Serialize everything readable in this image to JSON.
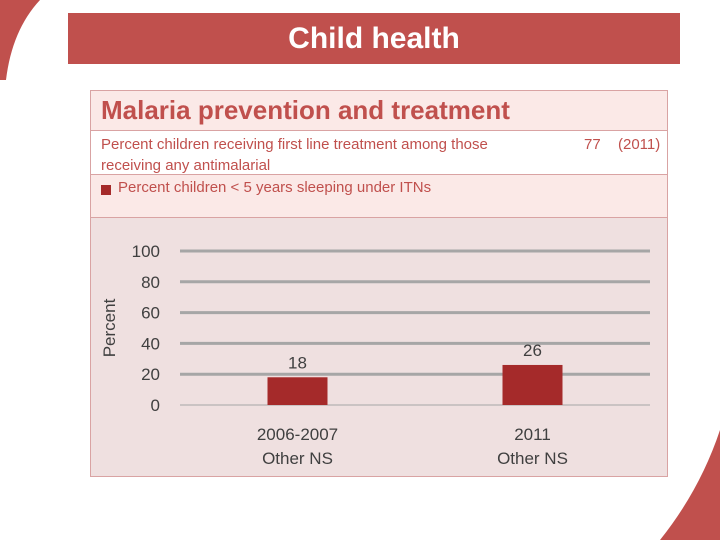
{
  "slide": {
    "title": "Child health"
  },
  "panel": {
    "title": "Malaria prevention and treatment",
    "info_text": "Percent children receiving first line treatment among those receiving any antimalarial",
    "info_value": "77",
    "info_year": "(2011)",
    "legend": "Percent children < 5 years sleeping under ITNs"
  },
  "colors": {
    "accent": "#c0504d",
    "bar": "#a52a2a",
    "panel_bg": "#efe0e0",
    "grid": "#a6a6a6"
  },
  "chart_data": {
    "type": "bar",
    "categories": [
      [
        "2006-2007",
        "Other NS"
      ],
      [
        "2011",
        "Other NS"
      ]
    ],
    "series": [
      {
        "name": "Percent children < 5 years sleeping under ITNs",
        "values": [
          18,
          26
        ]
      }
    ],
    "ylabel": "Percent",
    "ylim": [
      0,
      100
    ],
    "yticks": [
      0,
      20,
      40,
      60,
      80,
      100
    ],
    "data_labels": [
      "18",
      "26"
    ],
    "grid": true
  }
}
